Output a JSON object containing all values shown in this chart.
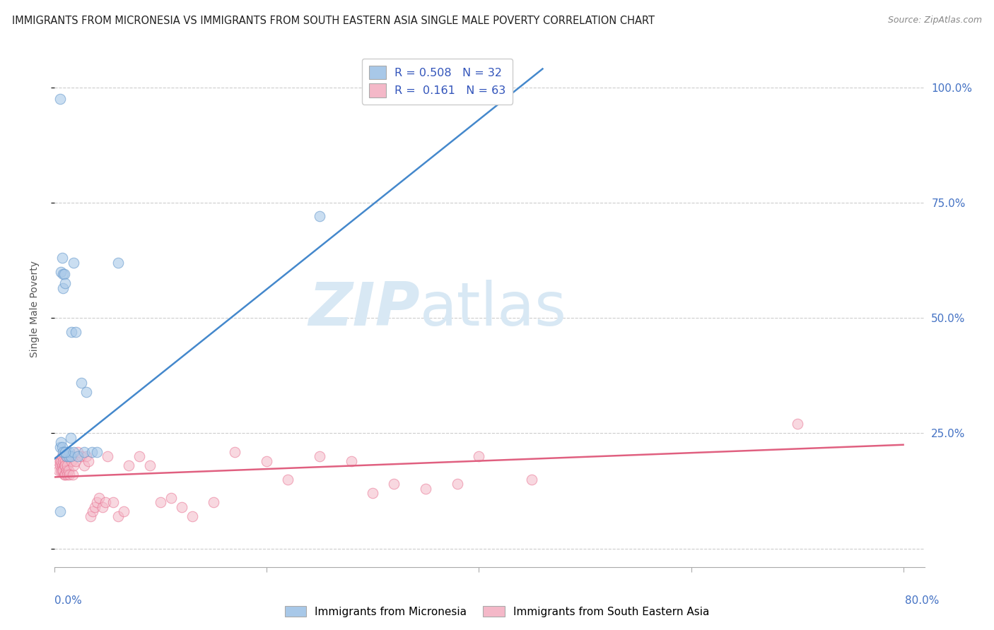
{
  "title": "IMMIGRANTS FROM MICRONESIA VS IMMIGRANTS FROM SOUTH EASTERN ASIA SINGLE MALE POVERTY CORRELATION CHART",
  "source": "Source: ZipAtlas.com",
  "ylabel": "Single Male Poverty",
  "xlim": [
    0.0,
    0.82
  ],
  "ylim": [
    -0.04,
    1.08
  ],
  "yticks": [
    0.0,
    0.25,
    0.5,
    0.75,
    1.0
  ],
  "right_ytick_labels": [
    "",
    "25.0%",
    "50.0%",
    "75.0%",
    "100.0%"
  ],
  "legend_R1": "0.508",
  "legend_N1": "32",
  "legend_R2": "0.161",
  "legend_N2": "63",
  "blue_color": "#a8c8e8",
  "blue_edge_color": "#6699cc",
  "pink_color": "#f4b8c8",
  "pink_edge_color": "#e87090",
  "blue_line_color": "#4488cc",
  "pink_line_color": "#e06080",
  "watermark_zip": "ZIP",
  "watermark_atlas": "atlas",
  "watermark_color": "#d8e8f4",
  "blue_scatter_x": [
    0.005,
    0.006,
    0.007,
    0.008,
    0.008,
    0.009,
    0.01,
    0.01,
    0.011,
    0.012,
    0.013,
    0.014,
    0.015,
    0.015,
    0.016,
    0.018,
    0.02,
    0.022,
    0.025,
    0.028,
    0.03,
    0.035,
    0.04,
    0.005,
    0.006,
    0.007,
    0.008,
    0.01,
    0.018,
    0.06,
    0.005,
    0.25
  ],
  "blue_scatter_y": [
    0.975,
    0.6,
    0.63,
    0.595,
    0.565,
    0.595,
    0.575,
    0.21,
    0.2,
    0.21,
    0.2,
    0.21,
    0.2,
    0.24,
    0.47,
    0.21,
    0.47,
    0.2,
    0.36,
    0.21,
    0.34,
    0.21,
    0.21,
    0.22,
    0.23,
    0.22,
    0.21,
    0.21,
    0.62,
    0.62,
    0.08,
    0.72
  ],
  "pink_scatter_x": [
    0.003,
    0.004,
    0.005,
    0.005,
    0.006,
    0.006,
    0.007,
    0.007,
    0.007,
    0.008,
    0.008,
    0.009,
    0.009,
    0.01,
    0.01,
    0.01,
    0.011,
    0.011,
    0.012,
    0.012,
    0.013,
    0.014,
    0.015,
    0.016,
    0.017,
    0.018,
    0.02,
    0.022,
    0.025,
    0.028,
    0.03,
    0.032,
    0.034,
    0.036,
    0.038,
    0.04,
    0.042,
    0.045,
    0.048,
    0.05,
    0.055,
    0.06,
    0.065,
    0.07,
    0.08,
    0.09,
    0.1,
    0.11,
    0.12,
    0.13,
    0.15,
    0.17,
    0.2,
    0.22,
    0.25,
    0.28,
    0.3,
    0.32,
    0.35,
    0.38,
    0.4,
    0.45,
    0.7
  ],
  "pink_scatter_y": [
    0.19,
    0.17,
    0.19,
    0.18,
    0.19,
    0.17,
    0.2,
    0.18,
    0.17,
    0.19,
    0.17,
    0.18,
    0.16,
    0.19,
    0.18,
    0.16,
    0.2,
    0.17,
    0.18,
    0.16,
    0.17,
    0.16,
    0.2,
    0.19,
    0.16,
    0.18,
    0.19,
    0.21,
    0.2,
    0.18,
    0.2,
    0.19,
    0.07,
    0.08,
    0.09,
    0.1,
    0.11,
    0.09,
    0.1,
    0.2,
    0.1,
    0.07,
    0.08,
    0.18,
    0.2,
    0.18,
    0.1,
    0.11,
    0.09,
    0.07,
    0.1,
    0.21,
    0.19,
    0.15,
    0.2,
    0.19,
    0.12,
    0.14,
    0.13,
    0.14,
    0.2,
    0.15,
    0.27
  ],
  "blue_line_x0": 0.0,
  "blue_line_y0": 0.195,
  "blue_line_x1": 0.46,
  "blue_line_y1": 1.04,
  "pink_line_x0": 0.0,
  "pink_line_y0": 0.155,
  "pink_line_x1": 0.8,
  "pink_line_y1": 0.225,
  "background_color": "#ffffff",
  "grid_color": "#cccccc",
  "right_tick_color": "#4472c4",
  "title_color": "#222222",
  "source_color": "#888888"
}
